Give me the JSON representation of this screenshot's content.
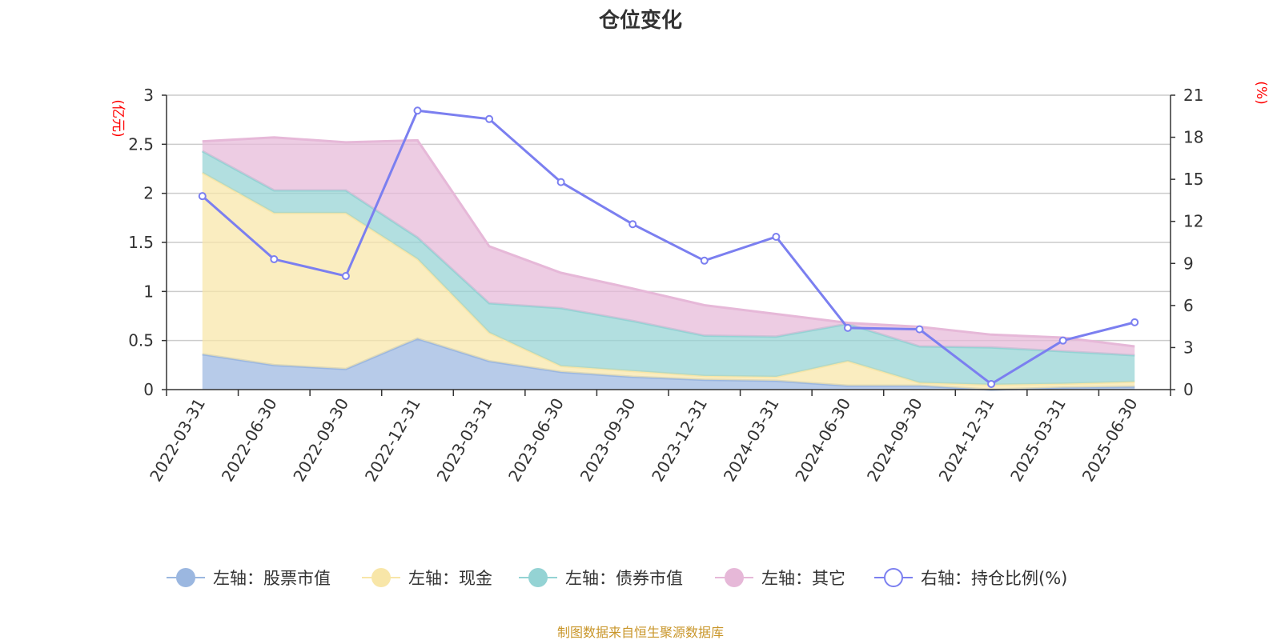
{
  "chart_data": {
    "type": "area",
    "title": "仓位变化",
    "categories": [
      "2022-03-31",
      "2022-06-30",
      "2022-09-30",
      "2022-12-31",
      "2023-03-31",
      "2023-06-30",
      "2023-09-30",
      "2023-12-31",
      "2024-03-31",
      "2024-06-30",
      "2024-09-30",
      "2024-12-31",
      "2025-03-31",
      "2025-06-30"
    ],
    "left_axis": {
      "unit": "(亿元)",
      "ylim": [
        0,
        3
      ],
      "ticks": [
        "0",
        "0.5",
        "1",
        "1.5",
        "2",
        "2.5",
        "3"
      ]
    },
    "right_axis": {
      "unit": "(%)",
      "ylim": [
        0,
        21
      ],
      "ticks": [
        "0",
        "3",
        "6",
        "9",
        "12",
        "15",
        "18",
        "21"
      ]
    },
    "stacked": true,
    "series": [
      {
        "name": "左轴：股票市值",
        "axis": "left",
        "type": "area",
        "color": "#9bb7e0",
        "values": [
          0.36,
          0.25,
          0.21,
          0.52,
          0.29,
          0.18,
          0.13,
          0.1,
          0.09,
          0.04,
          0.04,
          0.0,
          0.02,
          0.03
        ]
      },
      {
        "name": "左轴：现金",
        "axis": "left",
        "type": "area",
        "color": "#f8e6a8",
        "values": [
          1.85,
          1.55,
          1.59,
          0.81,
          0.29,
          0.06,
          0.06,
          0.04,
          0.04,
          0.25,
          0.03,
          0.05,
          0.04,
          0.05
        ]
      },
      {
        "name": "左轴：债券市值",
        "axis": "left",
        "type": "area",
        "color": "#94d3d4",
        "values": [
          0.22,
          0.23,
          0.23,
          0.22,
          0.3,
          0.59,
          0.51,
          0.41,
          0.41,
          0.38,
          0.37,
          0.38,
          0.33,
          0.27
        ]
      },
      {
        "name": "左轴：其它",
        "axis": "left",
        "type": "area",
        "color": "#e6b8d8",
        "values": [
          0.1,
          0.54,
          0.49,
          0.99,
          0.58,
          0.36,
          0.33,
          0.31,
          0.23,
          0.01,
          0.2,
          0.13,
          0.14,
          0.09
        ]
      },
      {
        "name": "右轴：持仓比例(%)",
        "axis": "right",
        "type": "line",
        "color": "#7b7ff0",
        "values": [
          13.8,
          9.3,
          8.1,
          19.9,
          19.3,
          14.8,
          11.8,
          9.2,
          10.9,
          4.4,
          4.3,
          0.4,
          3.5,
          4.8
        ]
      }
    ],
    "legend_position": "bottom",
    "grid": true
  },
  "footer": {
    "source_text": "制图数据来自恒生聚源数据库"
  }
}
